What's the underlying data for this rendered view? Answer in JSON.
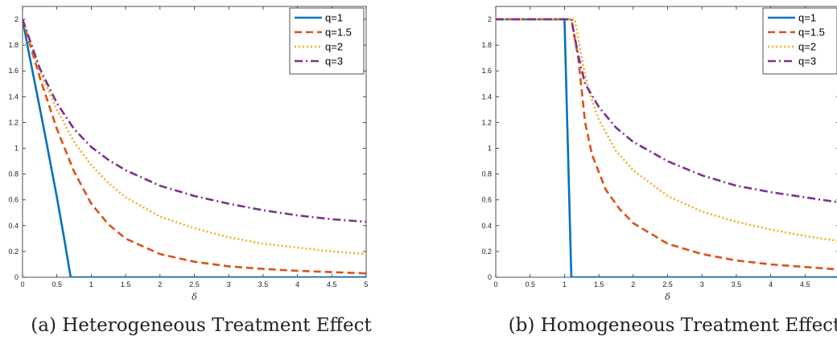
{
  "chart_data": [
    {
      "type": "line",
      "caption": "(a) Heterogeneous Treatment Effect",
      "xlabel": "δ",
      "ylabel": "",
      "xlim": [
        0,
        5
      ],
      "ylim": [
        0,
        2.1
      ],
      "xticks": [
        "0",
        "0.5",
        "1",
        "1.5",
        "2",
        "2.5",
        "3",
        "3.5",
        "4",
        "4.5",
        "5"
      ],
      "yticks": [
        "0",
        "0.2",
        "0.4",
        "0.6",
        "0.8",
        "1",
        "1.2",
        "1.4",
        "1.6",
        "1.8",
        "2"
      ],
      "grid": false,
      "legend_position": "top-right",
      "series": [
        {
          "name": "q=1",
          "color": "#0072BD",
          "style": "solid",
          "x": [
            0,
            0.1,
            0.2,
            0.3,
            0.4,
            0.5,
            0.6,
            0.7,
            0.75,
            1,
            2,
            3,
            4,
            5
          ],
          "y": [
            2.0,
            1.72,
            1.45,
            1.18,
            0.9,
            0.62,
            0.32,
            0.0,
            0,
            0,
            0,
            0,
            0,
            0
          ]
        },
        {
          "name": "q=1.5",
          "color": "#D95319",
          "style": "dashed",
          "x": [
            0,
            0.25,
            0.5,
            0.75,
            1,
            1.25,
            1.5,
            2,
            2.5,
            3,
            3.5,
            4,
            4.5,
            5
          ],
          "y": [
            2.0,
            1.55,
            1.15,
            0.82,
            0.57,
            0.41,
            0.3,
            0.18,
            0.12,
            0.085,
            0.065,
            0.05,
            0.04,
            0.03
          ]
        },
        {
          "name": "q=2",
          "color": "#EDB120",
          "style": "dotted",
          "x": [
            0,
            0.25,
            0.5,
            0.75,
            1,
            1.25,
            1.5,
            2,
            2.5,
            3,
            3.5,
            4,
            4.5,
            5
          ],
          "y": [
            2.0,
            1.6,
            1.3,
            1.05,
            0.87,
            0.73,
            0.62,
            0.47,
            0.38,
            0.31,
            0.26,
            0.23,
            0.2,
            0.18
          ]
        },
        {
          "name": "q=3",
          "color": "#7E2F8E",
          "style": "dashdot",
          "x": [
            0,
            0.25,
            0.5,
            0.75,
            1,
            1.25,
            1.5,
            2,
            2.5,
            3,
            3.5,
            4,
            4.5,
            5
          ],
          "y": [
            2.0,
            1.62,
            1.35,
            1.15,
            1.01,
            0.91,
            0.83,
            0.71,
            0.63,
            0.57,
            0.52,
            0.48,
            0.45,
            0.43
          ]
        }
      ]
    },
    {
      "type": "line",
      "caption": "(b) Homogeneous Treatment Effect",
      "xlabel": "δ",
      "ylabel": "",
      "xlim": [
        0,
        5
      ],
      "ylim": [
        0,
        2.1
      ],
      "xticks": [
        "0",
        "0.5",
        "1",
        "1.5",
        "2",
        "2.5",
        "3",
        "3.5",
        "4",
        "4.5"
      ],
      "yticks": [
        "0",
        "0.2",
        "0.4",
        "0.6",
        "0.8",
        "1",
        "1.2",
        "1.4",
        "1.6",
        "1.8",
        "2"
      ],
      "grid": false,
      "legend_position": "top-right",
      "series": [
        {
          "name": "q=1",
          "color": "#0072BD",
          "style": "solid",
          "x": [
            0,
            1.0,
            1.1,
            1.2,
            2,
            3,
            4,
            5
          ],
          "y": [
            2.0,
            2.0,
            0,
            0,
            0,
            0,
            0,
            0
          ]
        },
        {
          "name": "q=1.5",
          "color": "#D95319",
          "style": "dashed",
          "x": [
            0,
            1.1,
            1.2,
            1.3,
            1.4,
            1.6,
            1.8,
            2,
            2.5,
            3,
            3.5,
            4,
            4.5,
            5
          ],
          "y": [
            2.0,
            2.0,
            1.7,
            1.2,
            0.95,
            0.68,
            0.53,
            0.42,
            0.26,
            0.18,
            0.13,
            0.1,
            0.08,
            0.06
          ]
        },
        {
          "name": "q=2",
          "color": "#EDB120",
          "style": "dotted",
          "x": [
            0,
            1.15,
            1.25,
            1.35,
            1.5,
            1.75,
            2,
            2.5,
            3,
            3.5,
            4,
            4.5,
            5
          ],
          "y": [
            2.0,
            2.0,
            1.7,
            1.45,
            1.22,
            0.98,
            0.83,
            0.63,
            0.51,
            0.43,
            0.37,
            0.32,
            0.28
          ]
        },
        {
          "name": "q=3",
          "color": "#7E2F8E",
          "style": "dashdot",
          "x": [
            0,
            1.1,
            1.2,
            1.3,
            1.5,
            1.75,
            2,
            2.5,
            3,
            3.5,
            4,
            4.5,
            5
          ],
          "y": [
            2.0,
            2.0,
            1.72,
            1.5,
            1.32,
            1.16,
            1.05,
            0.9,
            0.79,
            0.71,
            0.66,
            0.62,
            0.58
          ]
        }
      ]
    }
  ]
}
